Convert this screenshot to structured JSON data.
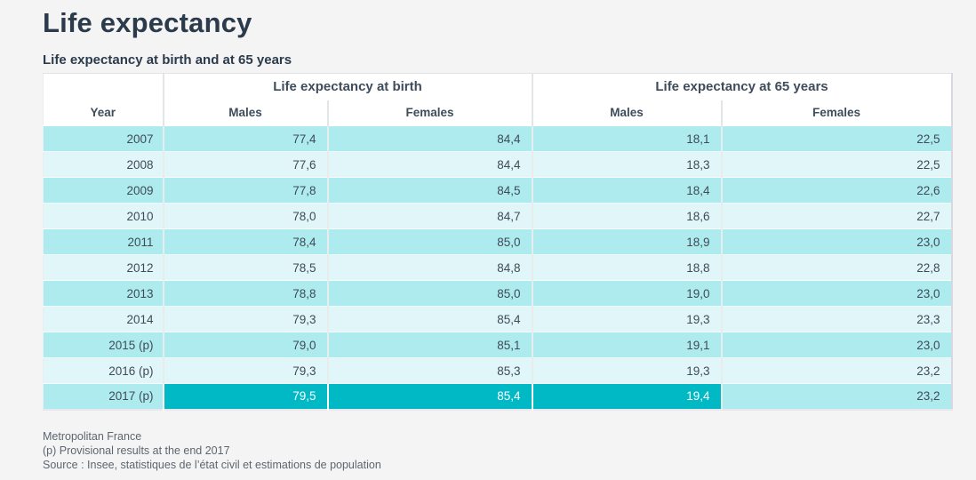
{
  "page_title": "Life expectancy",
  "chart_data": {
    "type": "table",
    "title": "Life expectancy",
    "subtitle": "Life expectancy at birth and at 65 years",
    "column_groups": [
      {
        "label": "",
        "span": 1
      },
      {
        "label": "Life expectancy at birth",
        "span": 2
      },
      {
        "label": "Life expectancy at 65 years",
        "span": 2
      }
    ],
    "columns": [
      "Year",
      "Males",
      "Females",
      "Males",
      "Females"
    ],
    "rows": [
      [
        "2007",
        "77,4",
        "84,4",
        "18,1",
        "22,5"
      ],
      [
        "2008",
        "77,6",
        "84,4",
        "18,3",
        "22,5"
      ],
      [
        "2009",
        "77,8",
        "84,5",
        "18,4",
        "22,6"
      ],
      [
        "2010",
        "78,0",
        "84,7",
        "18,6",
        "22,7"
      ],
      [
        "2011",
        "78,4",
        "85,0",
        "18,9",
        "23,0"
      ],
      [
        "2012",
        "78,5",
        "84,8",
        "18,8",
        "22,8"
      ],
      [
        "2013",
        "78,8",
        "85,0",
        "19,0",
        "23,0"
      ],
      [
        "2014",
        "79,3",
        "85,4",
        "19,3",
        "23,3"
      ],
      [
        "2015 (p)",
        "79,0",
        "85,1",
        "19,1",
        "23,0"
      ],
      [
        "2016 (p)",
        "79,3",
        "85,3",
        "19,3",
        "23,2"
      ],
      [
        "2017 (p)",
        "79,5",
        "85,4",
        "19,4",
        "23,2"
      ]
    ],
    "highlight": {
      "row_index": 10,
      "row_label": "2017 (p)",
      "col_indexes": [
        1,
        2,
        3
      ],
      "columns": [
        "Males (at birth)",
        "Females (at birth)",
        "Males (at 65 years)"
      ]
    },
    "footnotes": [
      "Metropolitan France",
      "(p) Provisional results at the end 2017",
      "Source : Insee, statistiques de l’état civil et estimations de population"
    ],
    "layout_hints": {
      "striped": true,
      "stripe_first_row": "teal"
    },
    "colors": {
      "row_teal": "#aeebee",
      "row_pale": "#e1f6f8",
      "highlight": "#00b9c5",
      "highlight_text": "#ffffff",
      "header_background": "#ffffff",
      "header_text": "#3e4c5c",
      "title_text": "#2b3b4b",
      "body_text": "#3f4b59",
      "footnote_text": "#5d666f",
      "page_background": "#f4f4f5"
    }
  }
}
